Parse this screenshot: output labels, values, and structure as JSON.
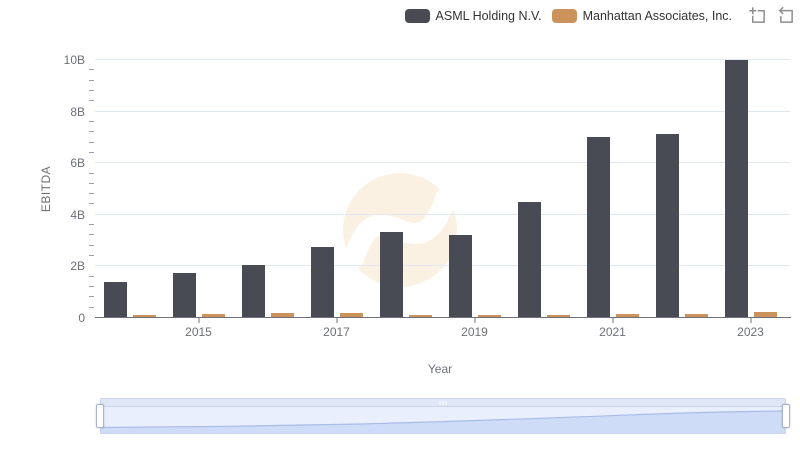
{
  "legend": {
    "items": [
      {
        "label": "ASML Holding N.V.",
        "color": "#484A54"
      },
      {
        "label": "Manhattan Associates, Inc.",
        "color": "#CB925C"
      }
    ]
  },
  "toolbar": {
    "icons": [
      {
        "name": "box-zoom-icon"
      },
      {
        "name": "restore-icon"
      }
    ]
  },
  "chart_data": {
    "type": "bar",
    "title": "",
    "xlabel": "Year",
    "ylabel": "EBITDA",
    "categories": [
      "2014",
      "2015",
      "2016",
      "2017",
      "2018",
      "2019",
      "2020",
      "2021",
      "2022",
      "2023"
    ],
    "series": [
      {
        "name": "ASML Holding N.V.",
        "color": "#484A54",
        "values_billions": [
          1.4,
          1.75,
          2.05,
          2.75,
          3.35,
          3.2,
          4.5,
          7.0,
          7.15,
          10.0
        ]
      },
      {
        "name": "Manhattan Associates, Inc.",
        "color": "#CB925C",
        "values_billions": [
          0.13,
          0.17,
          0.2,
          0.2,
          0.13,
          0.12,
          0.12,
          0.15,
          0.17,
          0.25
        ]
      }
    ],
    "y_tick_labels": [
      "0",
      "2B",
      "4B",
      "6B",
      "8B",
      "10B"
    ],
    "y_major_step_billions": 2,
    "y_minor_step_billions": 0.4,
    "x_tick_labels": [
      "2015",
      "2017",
      "2019",
      "2021",
      "2023"
    ],
    "ylim_billions": [
      0,
      10
    ],
    "grid": true,
    "legend_position": "top-right",
    "watermark": "wave-logo",
    "data_zoom": {
      "type": "slider",
      "range": "full"
    }
  }
}
